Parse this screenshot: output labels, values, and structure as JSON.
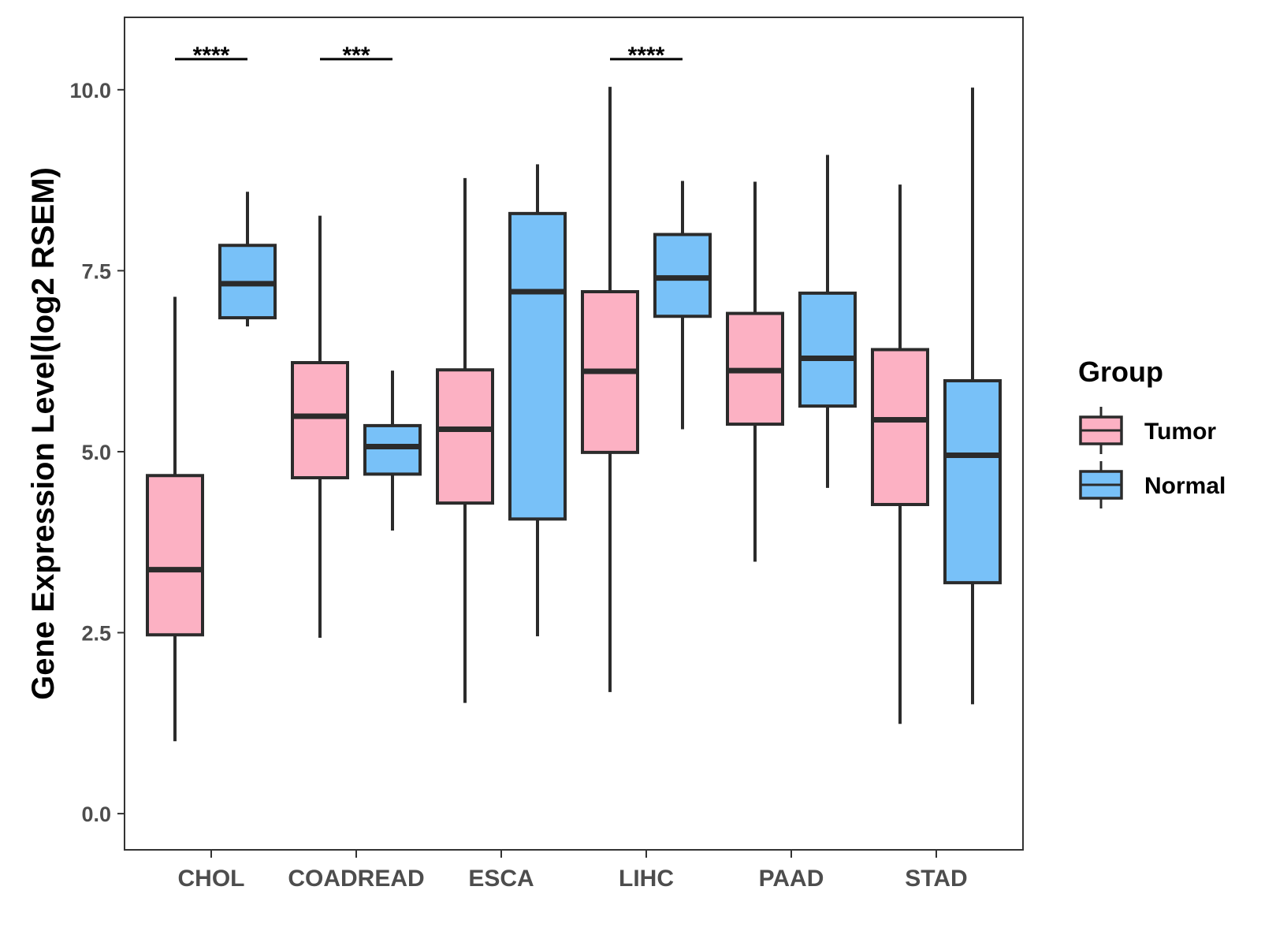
{
  "chart_data": {
    "type": "boxplot",
    "title": "",
    "xlabel": "",
    "ylabel": "Gene Expression Level(log2 RSEM)",
    "ylim": [
      -0.5,
      11
    ],
    "yticks": [
      0.0,
      2.5,
      5.0,
      7.5,
      10.0
    ],
    "ytick_labels": [
      "0.0",
      "2.5",
      "5.0",
      "7.5",
      "10.0"
    ],
    "categories": [
      "CHOL",
      "COADREAD",
      "ESCA",
      "LIHC",
      "PAAD",
      "STAD"
    ],
    "legend": {
      "title": "Group",
      "position": "right",
      "entries": [
        {
          "name": "Tumor",
          "color": "#FCB1C3"
        },
        {
          "name": "Normal",
          "color": "#78C1F8"
        }
      ]
    },
    "series": [
      {
        "name": "Tumor",
        "color": "#FCB1C3",
        "boxes": [
          {
            "min": 1.0,
            "q1": 2.47,
            "median": 3.37,
            "q3": 4.67,
            "max": 7.14
          },
          {
            "min": 2.43,
            "q1": 4.64,
            "median": 5.49,
            "q3": 6.23,
            "max": 8.26
          },
          {
            "min": 1.53,
            "q1": 4.29,
            "median": 5.31,
            "q3": 6.13,
            "max": 8.78
          },
          {
            "min": 1.68,
            "q1": 4.99,
            "median": 6.11,
            "q3": 7.21,
            "max": 10.04
          },
          {
            "min": 3.48,
            "q1": 5.38,
            "median": 6.12,
            "q3": 6.91,
            "max": 8.73
          },
          {
            "min": 1.24,
            "q1": 4.27,
            "median": 5.44,
            "q3": 6.41,
            "max": 8.69
          }
        ]
      },
      {
        "name": "Normal",
        "color": "#78C1F8",
        "boxes": [
          {
            "min": 6.73,
            "q1": 6.85,
            "median": 7.32,
            "q3": 7.85,
            "max": 8.59
          },
          {
            "min": 3.91,
            "q1": 4.69,
            "median": 5.07,
            "q3": 5.36,
            "max": 6.12
          },
          {
            "min": 2.45,
            "q1": 4.07,
            "median": 7.21,
            "q3": 8.29,
            "max": 8.97
          },
          {
            "min": 5.31,
            "q1": 6.87,
            "median": 7.4,
            "q3": 8.0,
            "max": 8.74
          },
          {
            "min": 4.5,
            "q1": 5.63,
            "median": 6.29,
            "q3": 7.19,
            "max": 9.1
          },
          {
            "min": 1.51,
            "q1": 3.19,
            "median": 4.95,
            "q3": 5.98,
            "max": 10.03
          }
        ]
      }
    ],
    "annotations": [
      {
        "category": "CHOL",
        "text": "****"
      },
      {
        "category": "COADREAD",
        "text": "***"
      },
      {
        "category": "LIHC",
        "text": "****"
      }
    ]
  }
}
